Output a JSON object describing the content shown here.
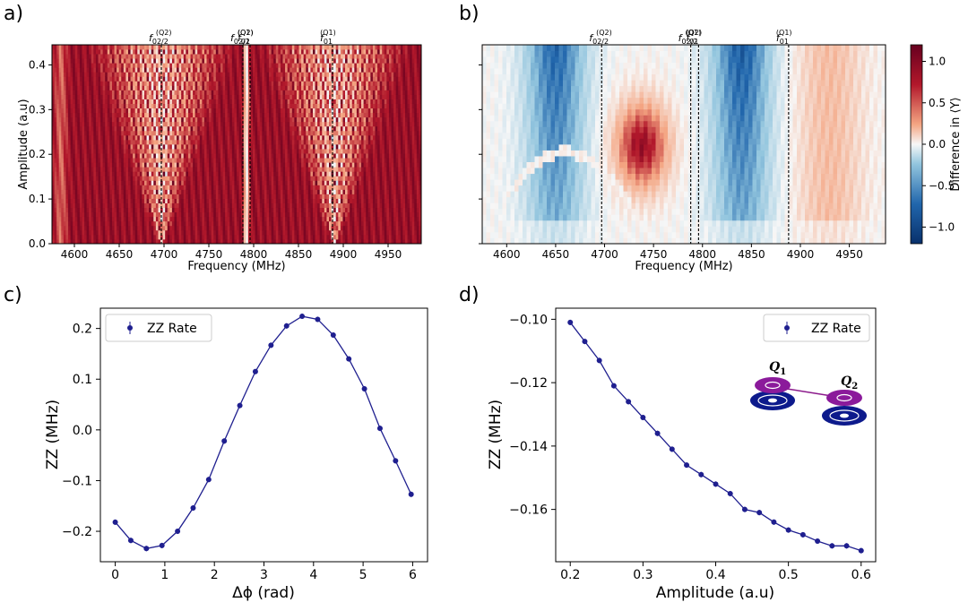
{
  "chart_data": [
    {
      "panel": "a)",
      "type": "heatmap",
      "xlabel": "Frequency (MHz)",
      "ylabel": "Amplitude (a.u)",
      "xlim": [
        4575,
        4987
      ],
      "ylim": [
        0,
        0.445
      ],
      "xticks": [
        "4600",
        "4650",
        "4700",
        "4750",
        "4800",
        "4850",
        "4900",
        "4950"
      ],
      "xtick_values": [
        4600,
        4650,
        4700,
        4750,
        4800,
        4850,
        4900,
        4950
      ],
      "yticks": [
        "0.0",
        "0.1",
        "0.2",
        "0.3",
        "0.4"
      ],
      "ytick_values": [
        0,
        0.1,
        0.2,
        0.3,
        0.4
      ],
      "annotations": [
        {
          "base": "f",
          "sub": "02/2",
          "sup": "(Q2)",
          "freq": 4697
        },
        {
          "base": "f",
          "sub": "02/2",
          "sup": "(Q1)",
          "freq": 4788
        },
        {
          "base": "f",
          "sub": "01",
          "sup": "(Q2)",
          "freq": 4796
        },
        {
          "base": "f",
          "sub": "01",
          "sup": "(Q1)",
          "freq": 4888
        }
      ]
    },
    {
      "panel": "b)",
      "type": "heatmap",
      "xlabel": "Frequency (MHz)",
      "xlim": [
        4575,
        4987
      ],
      "ylim": [
        0,
        0.445
      ],
      "xticks": [
        "4600",
        "4650",
        "4700",
        "4750",
        "4800",
        "4850",
        "4900",
        "4950"
      ],
      "xtick_values": [
        4600,
        4650,
        4700,
        4750,
        4800,
        4850,
        4900,
        4950
      ],
      "colorbar": {
        "label": "Difference in ⟨Y⟩",
        "range": [
          -1.2,
          1.2
        ],
        "ticks": [
          "1.0",
          "0.5",
          "0.0",
          "−0.5",
          "−1.0"
        ],
        "tick_values": [
          1.0,
          0.5,
          0.0,
          -0.5,
          -1.0
        ],
        "low_color": "#08306b",
        "mid_color": "#f7f7f7",
        "high_color": "#67001f"
      },
      "annotations": [
        {
          "base": "f",
          "sub": "02/2",
          "sup": "(Q2)",
          "freq": 4697
        },
        {
          "base": "f",
          "sub": "02/2",
          "sup": "(Q1)",
          "freq": 4788
        },
        {
          "base": "f",
          "sub": "01",
          "sup": "(Q2)",
          "freq": 4796
        },
        {
          "base": "f",
          "sub": "01",
          "sup": "(Q1)",
          "freq": 4888
        }
      ]
    },
    {
      "panel": "c)",
      "type": "line",
      "xlabel": "Δϕ (rad)",
      "ylabel": "ZZ (MHz)",
      "xlim": [
        -0.3,
        6.3
      ],
      "ylim": [
        -0.26,
        0.24
      ],
      "xticks": [
        "0",
        "1",
        "2",
        "3",
        "4",
        "5",
        "6"
      ],
      "xtick_values": [
        0,
        1,
        2,
        3,
        4,
        5,
        6
      ],
      "yticks": [
        "0.2",
        "0.1",
        "0.0",
        "−0.1",
        "−0.2"
      ],
      "ytick_values": [
        0.2,
        0.1,
        0.0,
        -0.1,
        -0.2
      ],
      "legend": "ZZ Rate",
      "color": "#1f1f8f",
      "series": [
        {
          "name": "ZZ Rate",
          "x": [
            0,
            0.314,
            0.628,
            0.942,
            1.257,
            1.571,
            1.885,
            2.199,
            2.513,
            2.827,
            3.142,
            3.456,
            3.77,
            4.084,
            4.398,
            4.712,
            5.027,
            5.341,
            5.655,
            5.969
          ],
          "values": [
            -0.182,
            -0.218,
            -0.234,
            -0.228,
            -0.2,
            -0.154,
            -0.098,
            -0.022,
            0.048,
            0.115,
            0.167,
            0.205,
            0.224,
            0.218,
            0.187,
            0.14,
            0.081,
            0.003,
            -0.061,
            -0.127
          ]
        }
      ]
    },
    {
      "panel": "d)",
      "type": "line",
      "xlabel": "Amplitude (a.u)",
      "ylabel": "ZZ (MHz)",
      "xlim": [
        0.18,
        0.62
      ],
      "ylim": [
        -0.1765,
        -0.0965
      ],
      "xticks": [
        "0.2",
        "0.3",
        "0.4",
        "0.5",
        "0.6"
      ],
      "xtick_values": [
        0.2,
        0.3,
        0.4,
        0.5,
        0.6
      ],
      "yticks": [
        "−0.10",
        "−0.12",
        "−0.14",
        "−0.16"
      ],
      "ytick_values": [
        -0.1,
        -0.12,
        -0.14,
        -0.16
      ],
      "legend": "ZZ Rate",
      "color": "#1f1f8f",
      "inset": {
        "q1": "Q",
        "q1_sub": "1",
        "q2": "Q",
        "q2_sub": "2"
      },
      "series": [
        {
          "name": "ZZ Rate",
          "x": [
            0.2,
            0.22,
            0.24,
            0.26,
            0.28,
            0.3,
            0.32,
            0.34,
            0.36,
            0.38,
            0.4,
            0.42,
            0.44,
            0.46,
            0.48,
            0.5,
            0.52,
            0.54,
            0.56,
            0.58,
            0.6
          ],
          "values": [
            -0.101,
            -0.107,
            -0.113,
            -0.121,
            -0.126,
            -0.131,
            -0.136,
            -0.141,
            -0.146,
            -0.149,
            -0.152,
            -0.155,
            -0.16,
            -0.161,
            -0.164,
            -0.1665,
            -0.168,
            -0.17,
            -0.1715,
            -0.1715,
            -0.173
          ]
        }
      ]
    }
  ]
}
